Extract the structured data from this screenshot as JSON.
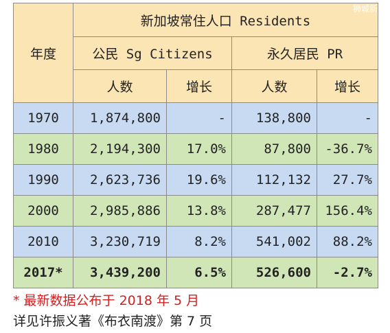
{
  "header": {
    "year_label": "年度",
    "residents_label": "新加坡常住人口 Residents",
    "citizens_label": "公民 Sg Citizens",
    "pr_label": "永久居民 PR",
    "population_label": "人数",
    "growth_label": "增长"
  },
  "rows": [
    {
      "year": "1970",
      "citizens": "1,874,800",
      "citizens_growth": "-",
      "pr": "138,800",
      "pr_growth": "-"
    },
    {
      "year": "1980",
      "citizens": "2,194,300",
      "citizens_growth": "17.0%",
      "pr": "87,800",
      "pr_growth": "-36.7%"
    },
    {
      "year": "1990",
      "citizens": "2,623,736",
      "citizens_growth": "19.6%",
      "pr": "112,132",
      "pr_growth": "27.7%"
    },
    {
      "year": "2000",
      "citizens": "2,985,886",
      "citizens_growth": "13.8%",
      "pr": "287,477",
      "pr_growth": "156.4%"
    },
    {
      "year": "2010",
      "citizens": "3,230,719",
      "citizens_growth": "8.2%",
      "pr": "541,002",
      "pr_growth": "88.2%"
    },
    {
      "year": "2017*",
      "citizens": "3,439,200",
      "citizens_growth": "6.5%",
      "pr": "526,600",
      "pr_growth": "-2.7%"
    }
  ],
  "footnotes": {
    "line1": "* 最新数据公布于 2018 年 5 月",
    "line2": "详见许振义著《布衣南渡》第 7 页"
  },
  "watermark": "狮城新闻",
  "colors": {
    "header_bg": "#fce5b4",
    "row_blue": "#c8daf1",
    "row_green": "#d1e6b7",
    "highlight_red": "#d42020"
  }
}
